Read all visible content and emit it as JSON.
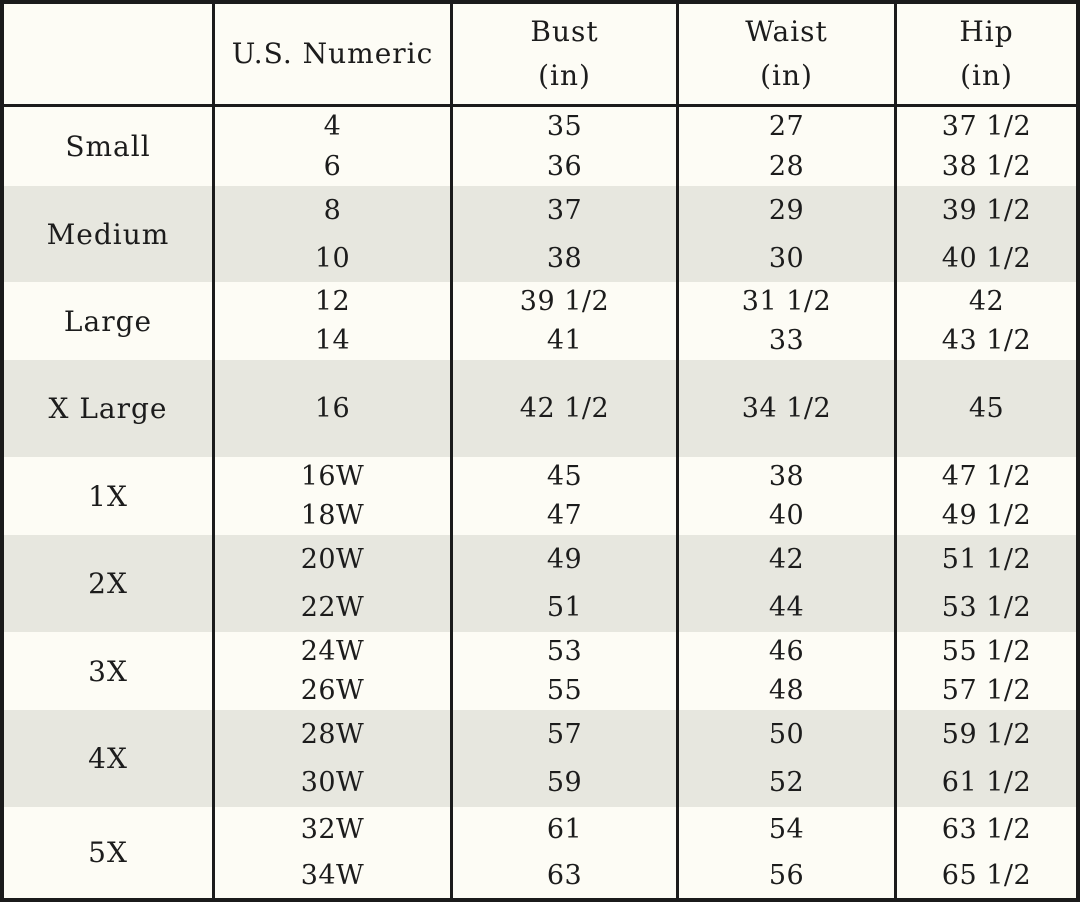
{
  "table": {
    "headers": [
      {
        "line1": "",
        "line2": ""
      },
      {
        "line1": "U.S. Numeric",
        "line2": ""
      },
      {
        "line1": "Bust",
        "line2": "(in)"
      },
      {
        "line1": "Waist",
        "line2": "(in)"
      },
      {
        "line1": "Hip",
        "line2": "(in)"
      }
    ],
    "rows": [
      {
        "size": "Small",
        "numeric": [
          "4",
          "6"
        ],
        "bust": [
          "35",
          "36"
        ],
        "waist": [
          "27",
          "28"
        ],
        "hip": [
          "37 1/2",
          "38 1/2"
        ]
      },
      {
        "size": "Medium",
        "numeric": [
          "8",
          "10"
        ],
        "bust": [
          "37",
          "38"
        ],
        "waist": [
          "29",
          "30"
        ],
        "hip": [
          "39 1/2",
          "40 1/2"
        ]
      },
      {
        "size": "Large",
        "numeric": [
          "12",
          "14"
        ],
        "bust": [
          "39 1/2",
          "41"
        ],
        "waist": [
          "31 1/2",
          "33"
        ],
        "hip": [
          "42",
          "43 1/2"
        ]
      },
      {
        "size": "X Large",
        "numeric": [
          "16"
        ],
        "bust": [
          "42 1/2"
        ],
        "waist": [
          "34 1/2"
        ],
        "hip": [
          "45"
        ]
      },
      {
        "size": "1X",
        "numeric": [
          "16W",
          "18W"
        ],
        "bust": [
          "45",
          "47"
        ],
        "waist": [
          "38",
          "40"
        ],
        "hip": [
          "47 1/2",
          "49 1/2"
        ]
      },
      {
        "size": "2X",
        "numeric": [
          "20W",
          "22W"
        ],
        "bust": [
          "49",
          "51"
        ],
        "waist": [
          "42",
          "44"
        ],
        "hip": [
          "51 1/2",
          "53 1/2"
        ]
      },
      {
        "size": "3X",
        "numeric": [
          "24W",
          "26W"
        ],
        "bust": [
          "53",
          "55"
        ],
        "waist": [
          "46",
          "48"
        ],
        "hip": [
          "55 1/2",
          "57 1/2"
        ]
      },
      {
        "size": "4X",
        "numeric": [
          "28W",
          "30W"
        ],
        "bust": [
          "57",
          "59"
        ],
        "waist": [
          "50",
          "52"
        ],
        "hip": [
          "59 1/2",
          "61 1/2"
        ]
      },
      {
        "size": "5X",
        "numeric": [
          "32W",
          "34W"
        ],
        "bust": [
          "61",
          "63"
        ],
        "waist": [
          "54",
          "56"
        ],
        "hip": [
          "63 1/2",
          "65 1/2"
        ]
      }
    ]
  }
}
